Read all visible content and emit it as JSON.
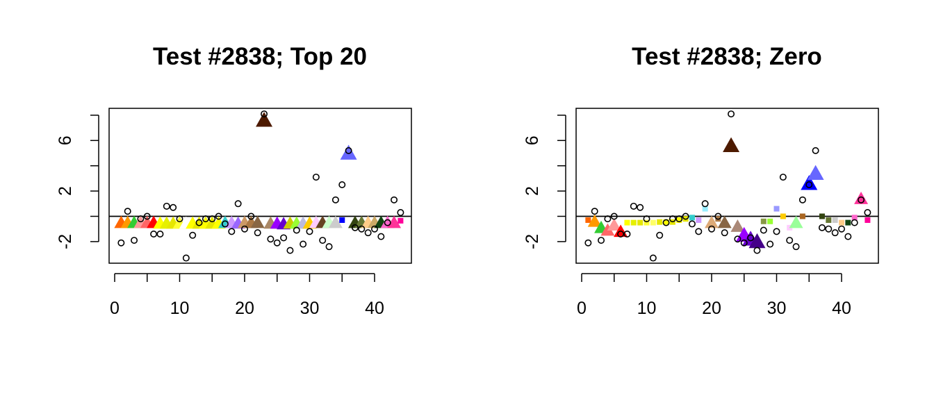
{
  "chart_data": [
    {
      "type": "scatter",
      "title": "Test #2838; Top 20",
      "xlabel": "",
      "ylabel": "",
      "xlim": [
        0,
        44
      ],
      "ylim": [
        -3.7,
        8
      ],
      "x_ticks": [
        "0",
        "10",
        "20",
        "30",
        "40"
      ],
      "y_ticks": [
        "-2",
        "2",
        "6"
      ],
      "reference_line_y": 0,
      "observed": {
        "x": [
          1,
          2,
          3,
          4,
          5,
          6,
          7,
          8,
          9,
          10,
          11,
          12,
          13,
          14,
          15,
          16,
          17,
          18,
          19,
          20,
          21,
          22,
          23,
          24,
          25,
          26,
          27,
          28,
          29,
          30,
          31,
          32,
          33,
          34,
          35,
          36,
          37,
          38,
          39,
          40,
          41,
          42,
          43,
          44
        ],
        "y": [
          -2.1,
          0.4,
          -1.9,
          -0.2,
          0,
          -1.4,
          -1.4,
          0.8,
          0.7,
          -0.2,
          -3.3,
          -1.5,
          -0.5,
          -0.2,
          -0.2,
          0,
          -0.6,
          -1.2,
          1.0,
          -1.0,
          0,
          -1.3,
          8.1,
          -1.8,
          -2.1,
          -1.7,
          -2.7,
          -1.1,
          -2.2,
          -1.2,
          3.1,
          -1.9,
          -2.4,
          1.3,
          2.5,
          5.2,
          -0.9,
          -1.0,
          -1.3,
          -1.0,
          -1.6,
          -0.5,
          1.3,
          0.3
        ]
      },
      "fitted": {
        "x": [
          1,
          2,
          3,
          4,
          5,
          6,
          7,
          8,
          9,
          10,
          11,
          12,
          13,
          14,
          15,
          16,
          17,
          18,
          19,
          20,
          21,
          22,
          23,
          24,
          25,
          26,
          27,
          28,
          29,
          30,
          31,
          32,
          33,
          34,
          35,
          36,
          37,
          38,
          39,
          40,
          41,
          42,
          43,
          44
        ],
        "y": [
          -0.5,
          -0.5,
          -0.5,
          -0.5,
          -0.5,
          -0.5,
          -0.55,
          -0.55,
          -0.55,
          -0.55,
          -0.55,
          -0.55,
          -0.55,
          -0.55,
          -0.55,
          -0.55,
          -0.5,
          -0.5,
          -0.55,
          -0.5,
          -0.5,
          -0.5,
          7.6,
          -0.55,
          -0.55,
          -0.6,
          -0.55,
          -0.55,
          -0.55,
          -0.55,
          -0.5,
          -0.5,
          -0.5,
          -0.5,
          -0.3,
          5.0,
          -0.5,
          -0.5,
          -0.5,
          -0.5,
          -0.5,
          -0.5,
          -0.5,
          -0.35
        ],
        "markers": [
          "triangle",
          "triangle",
          "triangle",
          "triangle",
          "triangle",
          "triangle",
          "triangle",
          "triangle",
          "triangle",
          "triangle",
          "triangle",
          "triangle",
          "triangle",
          "triangle",
          "triangle",
          "triangle",
          "triangle",
          "triangle",
          "triangle",
          "triangle",
          "triangle",
          "triangle",
          "triangle",
          "triangle",
          "triangle",
          "triangle",
          "triangle",
          "triangle",
          "triangle",
          "triangle",
          "triangle",
          "triangle",
          "triangle",
          "triangle",
          "square",
          "triangle",
          "triangle",
          "triangle",
          "triangle",
          "triangle",
          "triangle",
          "triangle",
          "triangle",
          "square"
        ],
        "colors": [
          "#ff6600",
          "#ff9900",
          "#33cc33",
          "#ff9999",
          "#ff6666",
          "#ff0000",
          "#ffff00",
          "#e6f000",
          "#e6e600",
          "#ffff33",
          "#ffffff",
          "#ffff00",
          "#e6e600",
          "#ffff00",
          "#e6e600",
          "#ffff00",
          "#33cccc",
          "#cc99ff",
          "#9966ff",
          "#cc9966",
          "#aa7744",
          "#886644",
          "#4d1a00",
          "#aa8866",
          "#9900ff",
          "#6600cc",
          "#cccc00",
          "#99ff33",
          "#bbbbdd",
          "#ffcc00",
          "#ffccff",
          "#664422",
          "#ccffcc",
          "#cccccc",
          "#0000ff",
          "#6666ff",
          "#334411",
          "#667733",
          "#ffcc88",
          "#ccaa66",
          "#114411",
          "#ff66cc",
          "#ff3399",
          "#ff0099"
        ]
      }
    },
    {
      "type": "scatter",
      "title": "Test #2838; Zero",
      "xlabel": "",
      "ylabel": "",
      "xlim": [
        0,
        44
      ],
      "ylim": [
        -3.7,
        8
      ],
      "x_ticks": [
        "0",
        "10",
        "20",
        "30",
        "40"
      ],
      "y_ticks": [
        "-2",
        "2",
        "6"
      ],
      "reference_line_y": 0,
      "observed": {
        "x": [
          1,
          2,
          3,
          4,
          5,
          6,
          7,
          8,
          9,
          10,
          11,
          12,
          13,
          14,
          15,
          16,
          17,
          18,
          19,
          20,
          21,
          22,
          23,
          24,
          25,
          26,
          27,
          28,
          29,
          30,
          31,
          32,
          33,
          34,
          35,
          36,
          37,
          38,
          39,
          40,
          41,
          42,
          43,
          44
        ],
        "y": [
          -2.1,
          0.4,
          -1.9,
          -0.2,
          0,
          -1.4,
          -1.4,
          0.8,
          0.7,
          -0.2,
          -3.3,
          -1.5,
          -0.5,
          -0.2,
          -0.2,
          0,
          -0.6,
          -1.2,
          1.0,
          -1.0,
          0,
          -1.3,
          8.1,
          -1.8,
          -2.1,
          -1.7,
          -2.7,
          -1.1,
          -2.2,
          -1.2,
          3.1,
          -1.9,
          -2.4,
          1.3,
          2.5,
          5.2,
          -0.9,
          -1.0,
          -1.3,
          -1.0,
          -1.6,
          -0.5,
          1.3,
          0.3
        ]
      },
      "fitted": {
        "x": [
          1,
          2,
          3,
          4,
          5,
          6,
          7,
          8,
          9,
          10,
          11,
          12,
          13,
          14,
          15,
          16,
          17,
          18,
          19,
          20,
          21,
          22,
          23,
          24,
          25,
          26,
          27,
          28,
          29,
          30,
          31,
          32,
          33,
          34,
          35,
          36,
          37,
          38,
          39,
          40,
          41,
          42,
          43,
          44
        ],
        "y": [
          -0.3,
          -0.4,
          -0.9,
          -1.1,
          -0.7,
          -1.2,
          -0.5,
          -0.5,
          -0.5,
          -0.5,
          -0.5,
          -0.45,
          -0.45,
          -0.45,
          -0.3,
          -0.2,
          -0.1,
          -0.3,
          0.6,
          -0.5,
          -0.2,
          -0.5,
          5.6,
          -0.8,
          -1.5,
          -1.8,
          -2.0,
          -0.4,
          -0.4,
          0.6,
          0,
          -0.9,
          -0.5,
          0,
          2.6,
          3.4,
          0,
          -0.3,
          -0.3,
          -0.5,
          -0.5,
          -0.1,
          1.4,
          -0.3
        ],
        "markers": [
          "square",
          "triangle",
          "triangle",
          "triangle",
          "triangle",
          "triangle",
          "square",
          "square",
          "square",
          "square",
          "square",
          "square",
          "square",
          "square",
          "square",
          "square",
          "square",
          "square",
          "square",
          "triangle",
          "square",
          "triangle",
          "triangle",
          "triangle",
          "triangle",
          "triangle",
          "triangle",
          "square",
          "square",
          "square",
          "square",
          "square",
          "triangle",
          "square",
          "triangle",
          "triangle",
          "square",
          "square",
          "square",
          "square",
          "square",
          "square",
          "triangle",
          "square"
        ],
        "colors": [
          "#ff6600",
          "#ff9900",
          "#33cc33",
          "#ff6666",
          "#ff9999",
          "#ff0000",
          "#ffff00",
          "#e6f000",
          "#e6e600",
          "#ffff33",
          "#ffff66",
          "#e6e600",
          "#ffff00",
          "#e6e600",
          "#ffff00",
          "#e6e600",
          "#33cccc",
          "#cc99ff",
          "#99eeff",
          "#ddaa77",
          "#aa7744",
          "#886644",
          "#4d1a00",
          "#aa8877",
          "#9900ff",
          "#6600cc",
          "#440088",
          "#889944",
          "#99ff33",
          "#9999ff",
          "#ffcc00",
          "#ffccff",
          "#99ff99",
          "#aa6622",
          "#0000ff",
          "#6666ff",
          "#334411",
          "#667733",
          "#cccccc",
          "#ffcc88",
          "#114411",
          "#ff66cc",
          "#ff3399",
          "#ff0099"
        ]
      }
    }
  ]
}
